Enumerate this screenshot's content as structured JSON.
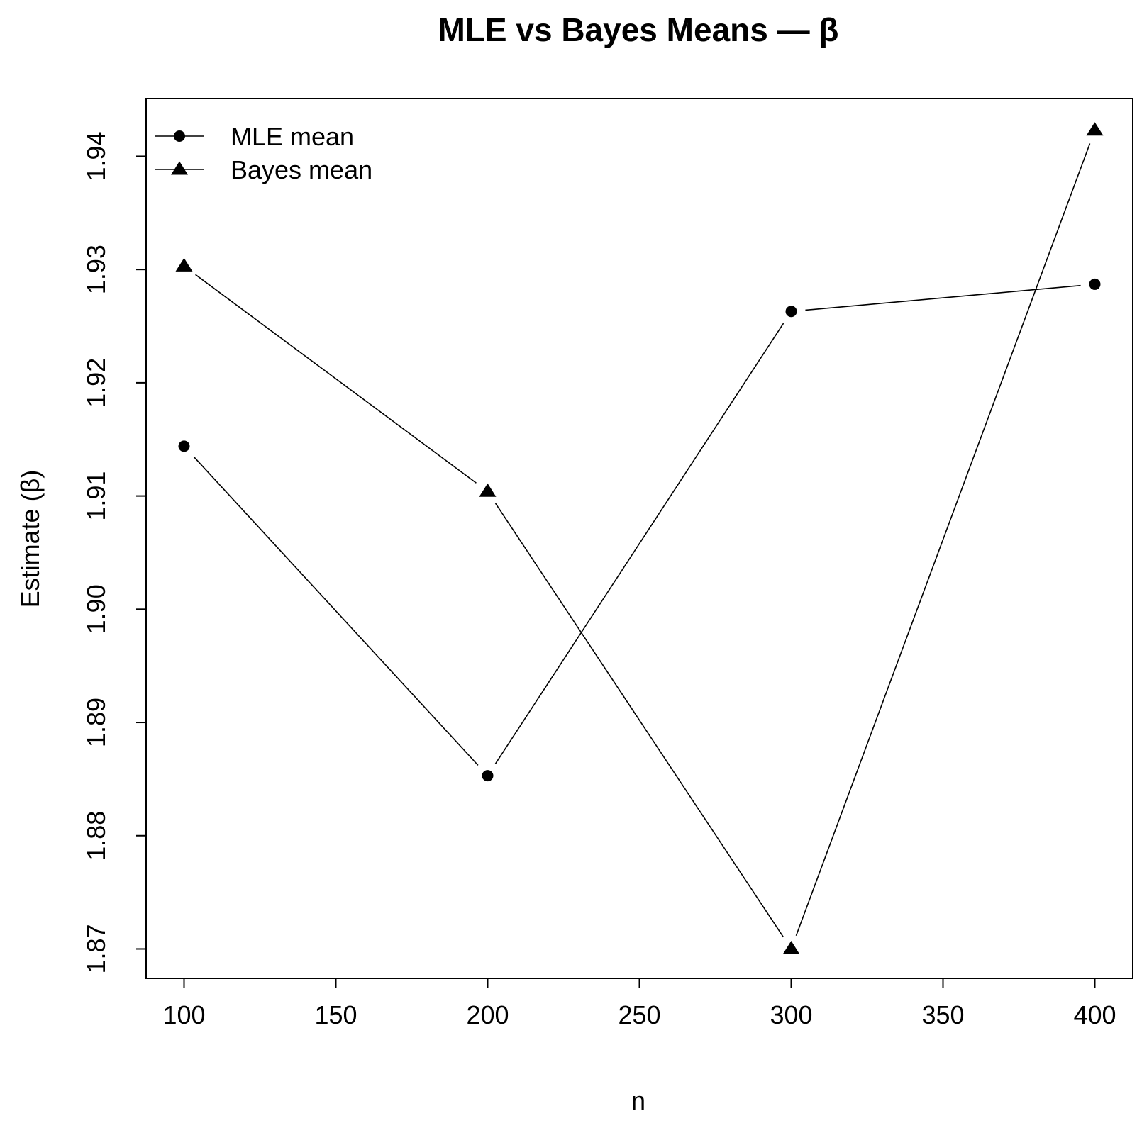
{
  "chart_data": {
    "type": "line",
    "title": "MLE vs Bayes Means — β",
    "xlabel": "n",
    "ylabel": "Estimate (β)",
    "x": [
      100,
      200,
      300,
      400
    ],
    "series": [
      {
        "name": "MLE mean",
        "marker": "circle",
        "values": [
          1.9144,
          1.8853,
          1.9263,
          1.9287
        ]
      },
      {
        "name": "Bayes mean",
        "marker": "triangle",
        "values": [
          1.9303,
          1.9104,
          1.87,
          1.9423
        ]
      }
    ],
    "xlim": [
      87.5,
      412.5
    ],
    "ylim": [
      1.8674,
      1.9451
    ],
    "xticks": [
      100,
      150,
      200,
      250,
      300,
      350,
      400
    ],
    "xtick_labels": [
      "100",
      "150",
      "200",
      "250",
      "300",
      "350",
      "400"
    ],
    "yticks": [
      1.87,
      1.88,
      1.89,
      1.9,
      1.91,
      1.92,
      1.93,
      1.94
    ],
    "ytick_labels": [
      "1.87",
      "1.88",
      "1.89",
      "1.90",
      "1.91",
      "1.92",
      "1.93",
      "1.94"
    ],
    "grid": false,
    "legend_position": "top-left",
    "line_color": "#000000"
  }
}
